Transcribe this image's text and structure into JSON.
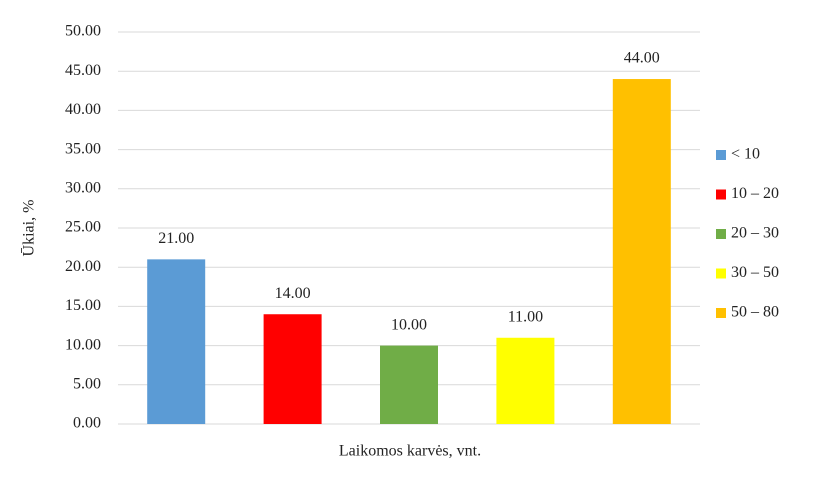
{
  "chart_data": {
    "type": "bar",
    "xlabel": "Laikomos karvės, vnt.",
    "ylabel": "Ūkiai, %",
    "series": [
      {
        "name": "< 10",
        "color": "#5b9bd5",
        "values": [
          21
        ],
        "value_labels": [
          "21.00"
        ]
      },
      {
        "name": "10 – 20",
        "color": "#ff0000",
        "values": [
          14
        ],
        "value_labels": [
          "14.00"
        ]
      },
      {
        "name": "20 – 30",
        "color": "#70ad47",
        "values": [
          10
        ],
        "value_labels": [
          "10.00"
        ]
      },
      {
        "name": "30 – 50",
        "color": "#ffff00",
        "values": [
          11
        ],
        "value_labels": [
          "11.00"
        ]
      },
      {
        "name": "50 – 80",
        "color": "#ffc000",
        "values": [
          44
        ],
        "value_labels": [
          "44.00"
        ]
      }
    ],
    "ylim": [
      0,
      50
    ],
    "yticks": [
      {
        "value": 0,
        "label": "0.00"
      },
      {
        "value": 5,
        "label": "5.00"
      },
      {
        "value": 10,
        "label": "10.00"
      },
      {
        "value": 15,
        "label": "15.00"
      },
      {
        "value": 20,
        "label": "20.00"
      },
      {
        "value": 25,
        "label": "25.00"
      },
      {
        "value": 30,
        "label": "30.00"
      },
      {
        "value": 35,
        "label": "35.00"
      },
      {
        "value": 40,
        "label": "40.00"
      },
      {
        "value": 45,
        "label": "45.00"
      },
      {
        "value": 50,
        "label": "50.00"
      }
    ],
    "grid": true,
    "legend": "right"
  }
}
